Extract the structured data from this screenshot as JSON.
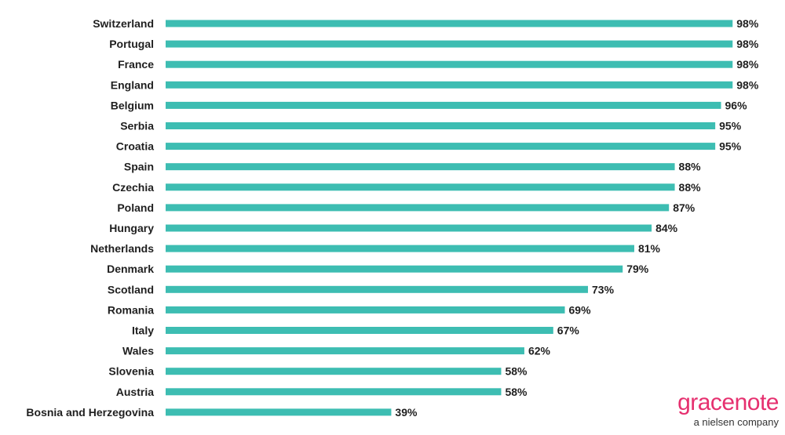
{
  "chart_data": {
    "type": "bar",
    "orientation": "horizontal",
    "categories": [
      "Switzerland",
      "Portugal",
      "France",
      "England",
      "Belgium",
      "Serbia",
      "Croatia",
      "Spain",
      "Czechia",
      "Poland",
      "Hungary",
      "Netherlands",
      "Denmark",
      "Scotland",
      "Romania",
      "Italy",
      "Wales",
      "Slovenia",
      "Austria",
      "Bosnia and Herzegovina"
    ],
    "values": [
      98,
      98,
      98,
      98,
      96,
      95,
      95,
      88,
      88,
      87,
      84,
      81,
      79,
      73,
      69,
      67,
      62,
      58,
      58,
      39
    ],
    "value_labels": [
      "98%",
      "98%",
      "98%",
      "98%",
      "96%",
      "95%",
      "95%",
      "88%",
      "88%",
      "87%",
      "84%",
      "81%",
      "79%",
      "73%",
      "69%",
      "67%",
      "62%",
      "58%",
      "58%",
      "39%"
    ],
    "xlim": [
      0,
      100
    ],
    "bar_color": "#3dbdb2",
    "grid": false,
    "legend": "none"
  },
  "logo": {
    "name": "gracenote",
    "tagline": "a nielsen company",
    "color": "#e6306f"
  }
}
